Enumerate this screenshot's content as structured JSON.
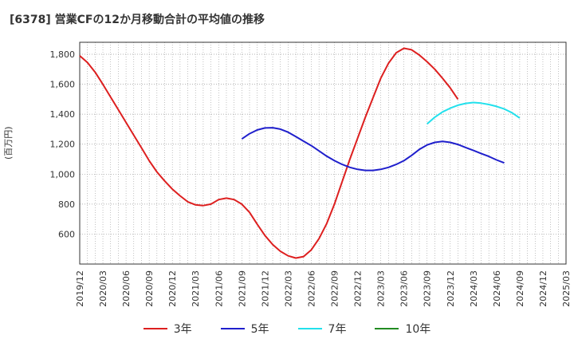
{
  "chart_data": {
    "type": "line",
    "title": "[6378]  営業CFの12か月移動合計の平均値の推移",
    "ylabel": "(百万円)",
    "ylim": [
      400,
      1880
    ],
    "yticks": [
      600,
      800,
      1000,
      1200,
      1400,
      1600,
      1800
    ],
    "ytick_labels": [
      "600",
      "800",
      "1,000",
      "1,200",
      "1,400",
      "1,600",
      "1,800"
    ],
    "xticks": [
      "2019/12",
      "2020/03",
      "2020/06",
      "2020/09",
      "2020/12",
      "2021/03",
      "2021/06",
      "2021/09",
      "2021/12",
      "2022/03",
      "2022/06",
      "2022/09",
      "2022/12",
      "2023/03",
      "2023/06",
      "2023/09",
      "2023/12",
      "2024/03",
      "2024/06",
      "2024/09",
      "2024/12",
      "2025/03"
    ],
    "grid": true,
    "legend_position": "bottom",
    "series": [
      {
        "name": "3年",
        "color": "#dd1f1f",
        "start_index": 0,
        "values": [
          1790,
          1745,
          1680,
          1600,
          1515,
          1430,
          1345,
          1260,
          1175,
          1090,
          1015,
          955,
          900,
          855,
          815,
          795,
          790,
          800,
          830,
          840,
          830,
          800,
          745,
          665,
          590,
          530,
          485,
          455,
          440,
          450,
          495,
          570,
          670,
          800,
          950,
          1100,
          1240,
          1380,
          1510,
          1640,
          1740,
          1810,
          1840,
          1830,
          1795,
          1750,
          1700,
          1640,
          1575,
          1500
        ]
      },
      {
        "name": "5年",
        "color": "#1f1fcc",
        "start_index": 21,
        "values": [
          1235,
          1270,
          1295,
          1308,
          1310,
          1300,
          1280,
          1250,
          1220,
          1190,
          1155,
          1120,
          1090,
          1065,
          1045,
          1032,
          1025,
          1025,
          1032,
          1045,
          1065,
          1090,
          1125,
          1165,
          1195,
          1212,
          1218,
          1212,
          1198,
          1178,
          1158,
          1138,
          1118,
          1095,
          1075
        ]
      },
      {
        "name": "7年",
        "color": "#22e0ec",
        "start_index": 45,
        "values": [
          1335,
          1380,
          1415,
          1440,
          1460,
          1472,
          1478,
          1474,
          1465,
          1452,
          1435,
          1410,
          1375
        ]
      },
      {
        "name": "10年",
        "color": "#228b22",
        "start_index": 0,
        "values": []
      }
    ]
  }
}
